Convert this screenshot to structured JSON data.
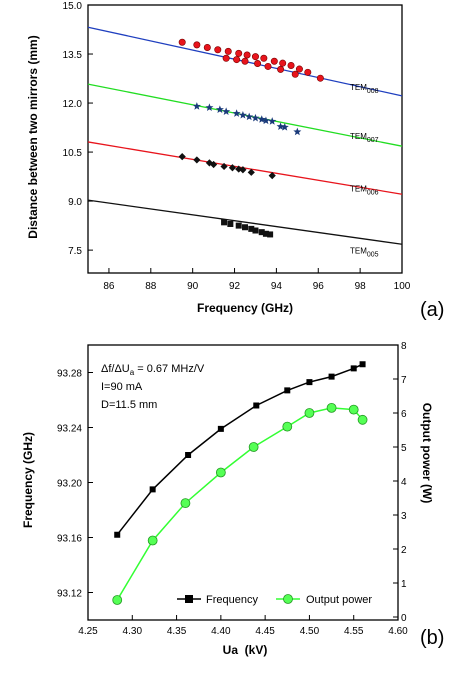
{
  "panel_labels": [
    "(a)",
    "(b)"
  ],
  "chart_data": [
    {
      "type": "scatter",
      "xlabel": "Frequency (GHz)",
      "ylabel": "Distance between two mirrors (mm)",
      "xlim": [
        85,
        100
      ],
      "ylim": [
        6.8,
        15.0
      ],
      "xticks": [
        86,
        88,
        90,
        92,
        94,
        96,
        98,
        100
      ],
      "yticks": [
        7.5,
        9.0,
        10.5,
        12.0,
        13.5,
        15.0
      ],
      "ytick_labels": [
        "7.5",
        "9.0",
        "10.5",
        "12.0",
        "13.5",
        "15.0"
      ],
      "grid": false,
      "series": [
        {
          "name": "TEM008",
          "mode": "TEM",
          "index": "008",
          "color": "#e8141c",
          "marker": "ball",
          "x": [
            89.5,
            90.2,
            90.7,
            91.2,
            91.7,
            92.2,
            92.6,
            93.0,
            93.4,
            93.9,
            94.3,
            94.7,
            95.1,
            95.5,
            96.1,
            91.6,
            92.1,
            92.5,
            93.1,
            93.6,
            94.2,
            94.9
          ],
          "y": [
            13.86,
            13.78,
            13.7,
            13.63,
            13.58,
            13.52,
            13.47,
            13.42,
            13.37,
            13.28,
            13.22,
            13.15,
            13.04,
            12.94,
            12.76,
            13.37,
            13.33,
            13.28,
            13.21,
            13.12,
            13.03,
            12.88
          ],
          "fit": {
            "x": [
              85,
              100
            ],
            "y": [
              14.32,
              12.22
            ],
            "color": "#1f3fbf"
          }
        },
        {
          "name": "TEM007",
          "mode": "TEM",
          "index": "007",
          "color": "#1a3a7a",
          "marker": "star",
          "x": [
            90.2,
            90.8,
            91.3,
            91.6,
            92.1,
            92.4,
            92.7,
            93.0,
            93.3,
            93.5,
            93.8,
            94.2,
            94.4,
            95.0
          ],
          "y": [
            11.9,
            11.86,
            11.8,
            11.74,
            11.68,
            11.63,
            11.58,
            11.54,
            11.5,
            11.46,
            11.44,
            11.28,
            11.26,
            11.12
          ],
          "fit": {
            "x": [
              85,
              100
            ],
            "y": [
              12.58,
              10.68
            ],
            "color": "#22dd22"
          }
        },
        {
          "name": "TEM006",
          "mode": "TEM",
          "index": "006",
          "color": "#111111",
          "marker": "diamond",
          "x": [
            89.5,
            90.2,
            90.8,
            91.0,
            91.5,
            91.9,
            92.2,
            92.4,
            92.8,
            93.8
          ],
          "y": [
            10.36,
            10.26,
            10.17,
            10.12,
            10.06,
            10.02,
            9.98,
            9.96,
            9.88,
            9.78
          ],
          "fit": {
            "x": [
              85,
              100
            ],
            "y": [
              10.81,
              9.21
            ],
            "color": "#e8141c"
          }
        },
        {
          "name": "TEM005",
          "mode": "TEM",
          "index": "005",
          "color": "#111111",
          "marker": "square",
          "x": [
            91.5,
            91.8,
            92.2,
            92.5,
            92.8,
            93.0,
            93.3,
            93.5,
            93.7
          ],
          "y": [
            8.35,
            8.3,
            8.25,
            8.2,
            8.15,
            8.1,
            8.05,
            8.0,
            7.98
          ],
          "fit": {
            "x": [
              85,
              100
            ],
            "y": [
              9.03,
              7.68
            ],
            "color": "#111111"
          }
        }
      ]
    },
    {
      "type": "line",
      "xlabel": "Ua  (kV)",
      "ylabel": "Frequency (GHz)",
      "y2label": "Output power (W)",
      "xlim": [
        4.25,
        4.6
      ],
      "ylim": [
        93.1,
        93.3
      ],
      "y2lim": [
        0,
        8
      ],
      "xticks": [
        4.25,
        4.3,
        4.35,
        4.4,
        4.45,
        4.5,
        4.55,
        4.6
      ],
      "xtick_labels": [
        "4.25",
        "4.30",
        "4.35",
        "4.40",
        "4.45",
        "4.50",
        "4.55",
        "4.60"
      ],
      "yticks": [
        93.12,
        93.16,
        93.2,
        93.24,
        93.28
      ],
      "ytick_labels": [
        "93.12",
        "93.16",
        "93.20",
        "93.24",
        "93.28"
      ],
      "y2ticks": [
        0,
        1,
        2,
        3,
        4,
        5,
        6,
        7,
        8
      ],
      "grid": false,
      "legend_position": "bottom-right",
      "annotation": {
        "line1_prefix": "Δf/ΔU",
        "line1_sub": "a",
        "line1_suffix": " = 0.67  MHz/V",
        "line2": "I=90 mA",
        "line3": "D=11.5 mm"
      },
      "series": [
        {
          "name": "Frequency",
          "axis": "left",
          "color": "#000000",
          "marker": "square",
          "x": [
            4.283,
            4.323,
            4.363,
            4.4,
            4.44,
            4.475,
            4.5,
            4.525,
            4.55,
            4.56
          ],
          "y": [
            93.162,
            93.195,
            93.22,
            93.239,
            93.256,
            93.267,
            93.273,
            93.277,
            93.283,
            93.286
          ]
        },
        {
          "name": "Output power",
          "axis": "right",
          "color": "#33ff33",
          "marker": "circle",
          "x": [
            4.283,
            4.323,
            4.36,
            4.4,
            4.437,
            4.475,
            4.5,
            4.525,
            4.55,
            4.56
          ],
          "y": [
            0.5,
            2.25,
            3.35,
            4.25,
            5.0,
            5.6,
            6.0,
            6.15,
            6.1,
            5.8
          ]
        }
      ]
    }
  ]
}
